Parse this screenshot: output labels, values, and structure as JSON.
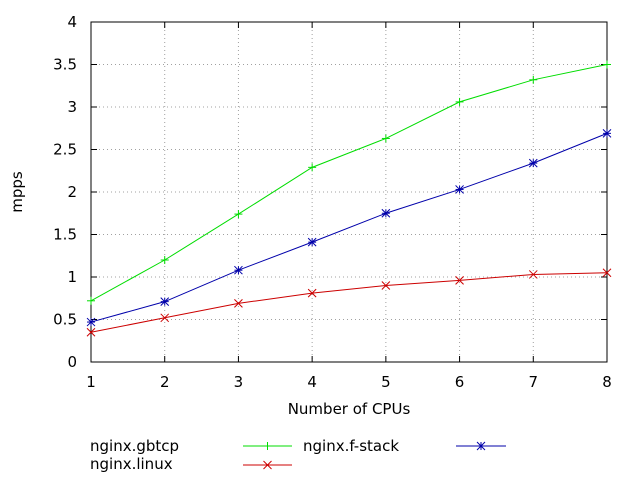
{
  "chart_data": {
    "type": "line",
    "xlabel": "Number of CPUs",
    "ylabel": "mpps",
    "xlim": [
      1,
      8
    ],
    "ylim": [
      0,
      4
    ],
    "x_ticks": [
      1,
      2,
      3,
      4,
      5,
      6,
      7,
      8
    ],
    "y_ticks": [
      0,
      0.5,
      1,
      1.5,
      2,
      2.5,
      3,
      3.5,
      4
    ],
    "grid": true,
    "legend_position": "bottom",
    "legend_labels": [
      "nginx.gbtcp",
      "nginx.f-stack",
      "nginx.linux"
    ],
    "x": [
      1,
      2,
      3,
      4,
      5,
      6,
      7,
      8
    ],
    "series": [
      {
        "color": "#00dd00",
        "marker": "plus",
        "values": [
          0.72,
          1.2,
          1.74,
          2.29,
          2.63,
          3.06,
          3.32,
          3.5
        ]
      },
      {
        "color": "#0000aa",
        "marker": "star",
        "values": [
          0.47,
          0.71,
          1.08,
          1.41,
          1.75,
          2.03,
          2.34,
          2.69
        ]
      },
      {
        "color": "#cc0000",
        "marker": "x",
        "values": [
          0.35,
          0.52,
          0.69,
          0.81,
          0.9,
          0.96,
          1.03,
          1.05
        ]
      }
    ]
  }
}
